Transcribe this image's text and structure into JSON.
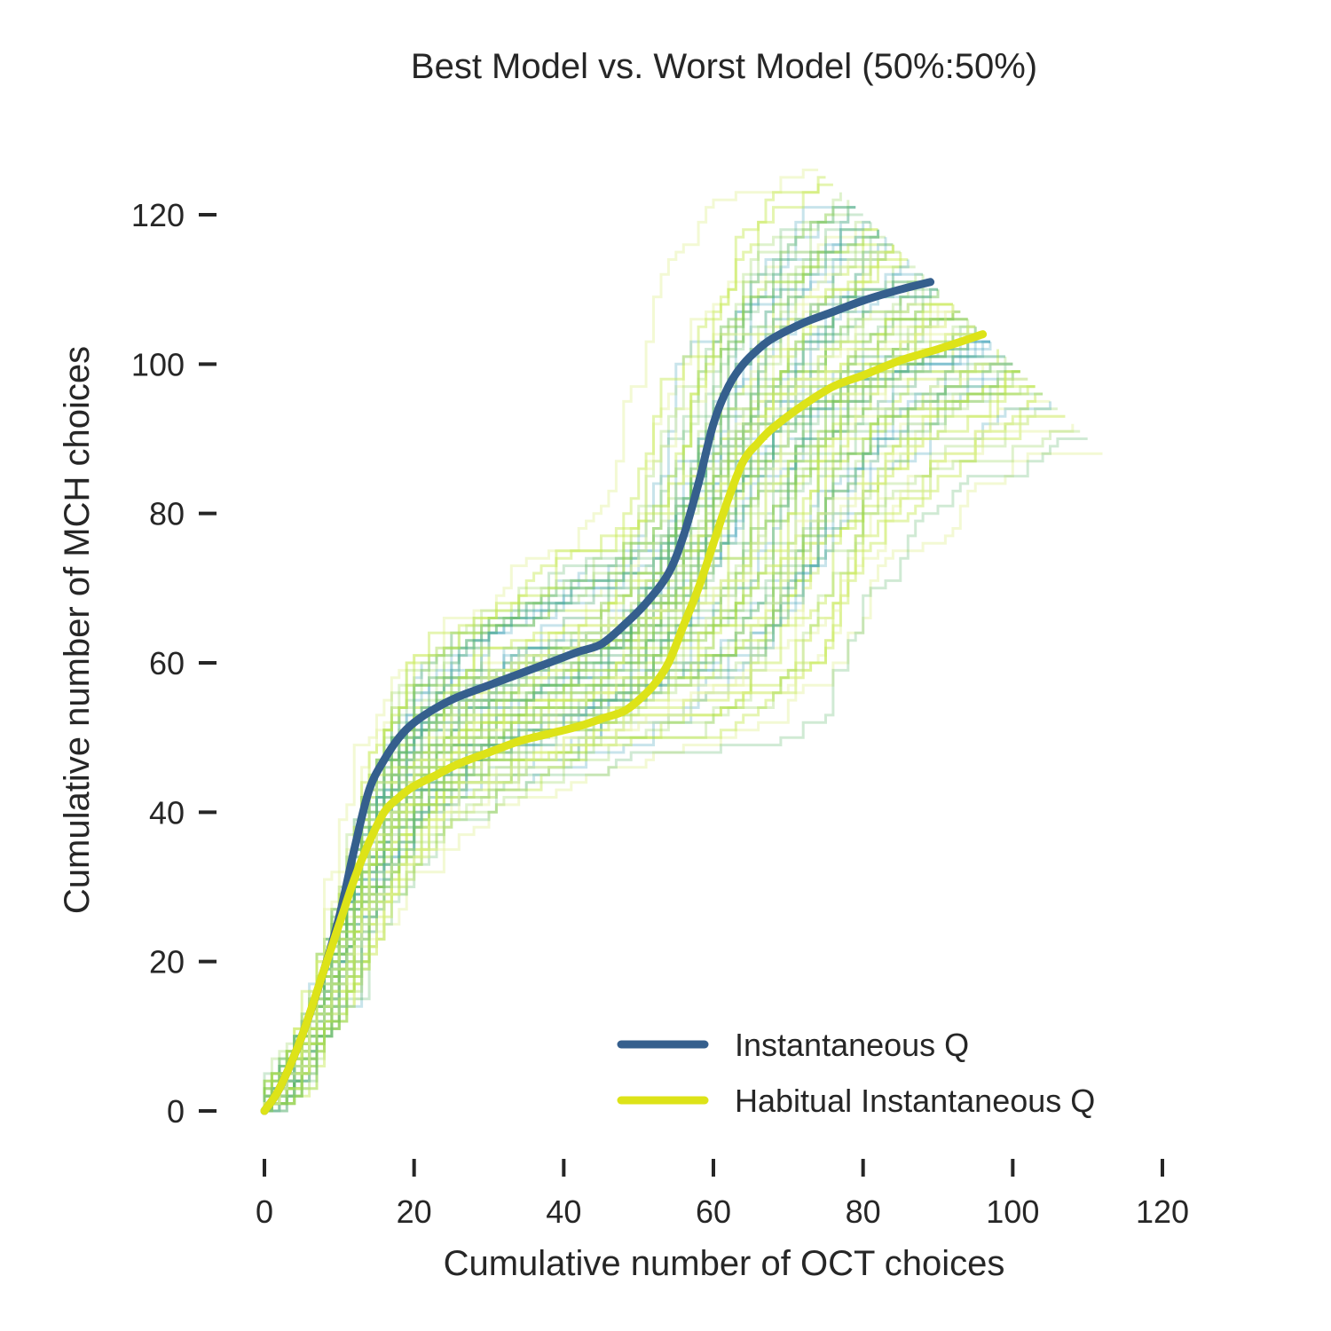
{
  "chart_data": {
    "type": "line",
    "title": "Best Model vs. Worst Model (50%:50%)",
    "xlabel": "Cumulative number of OCT choices",
    "ylabel": "Cumulative number of MCH choices",
    "xlim": [
      -3,
      124
    ],
    "ylim": [
      -5,
      130
    ],
    "xticks": [
      "0",
      "20",
      "40",
      "60",
      "80",
      "100",
      "120"
    ],
    "yticks": [
      "0",
      "20",
      "40",
      "60",
      "80",
      "100",
      "120"
    ],
    "grid": false,
    "legend_position": "lower-right",
    "series": [
      {
        "name": "Instantaneous Q",
        "color": "#355f8d",
        "x": [
          0,
          2,
          5,
          8,
          10,
          12,
          14,
          16,
          18,
          20,
          23,
          26,
          30,
          34,
          38,
          42,
          45,
          48,
          51,
          54,
          56,
          58,
          60,
          62,
          64,
          66,
          68,
          72,
          76,
          80,
          85,
          89
        ],
        "y": [
          0,
          3,
          10,
          19,
          26,
          35,
          43,
          47,
          50,
          52,
          54,
          55.5,
          57,
          58.5,
          60,
          61.5,
          62.5,
          65,
          68,
          72,
          77,
          84,
          92,
          97,
          100,
          102,
          103.5,
          105.5,
          107,
          108.5,
          110,
          111
        ]
      },
      {
        "name": "Habitual Instantaneous Q",
        "color": "#dde318",
        "x": [
          0,
          2,
          5,
          8,
          10,
          12,
          14,
          16,
          18,
          20,
          23,
          26,
          30,
          34,
          38,
          42,
          45,
          48,
          50,
          52,
          54,
          56,
          58,
          60,
          62,
          64,
          66,
          68,
          72,
          76,
          80,
          85,
          90,
          96
        ],
        "y": [
          0,
          3,
          10,
          19,
          25,
          31,
          36,
          40,
          42,
          43.5,
          45,
          46.5,
          48,
          49.5,
          50.5,
          51.5,
          52.5,
          53.5,
          55,
          57,
          60,
          65,
          70,
          76,
          82,
          87,
          89.5,
          91.5,
          94.5,
          97,
          98.5,
          100.5,
          102,
          104
        ]
      }
    ],
    "simulation_traces": {
      "count": 100,
      "colors": [
        "#3b9fb8",
        "#55b565",
        "#8ccf4a",
        "#c6e852",
        "#e4f2a0"
      ]
    }
  }
}
